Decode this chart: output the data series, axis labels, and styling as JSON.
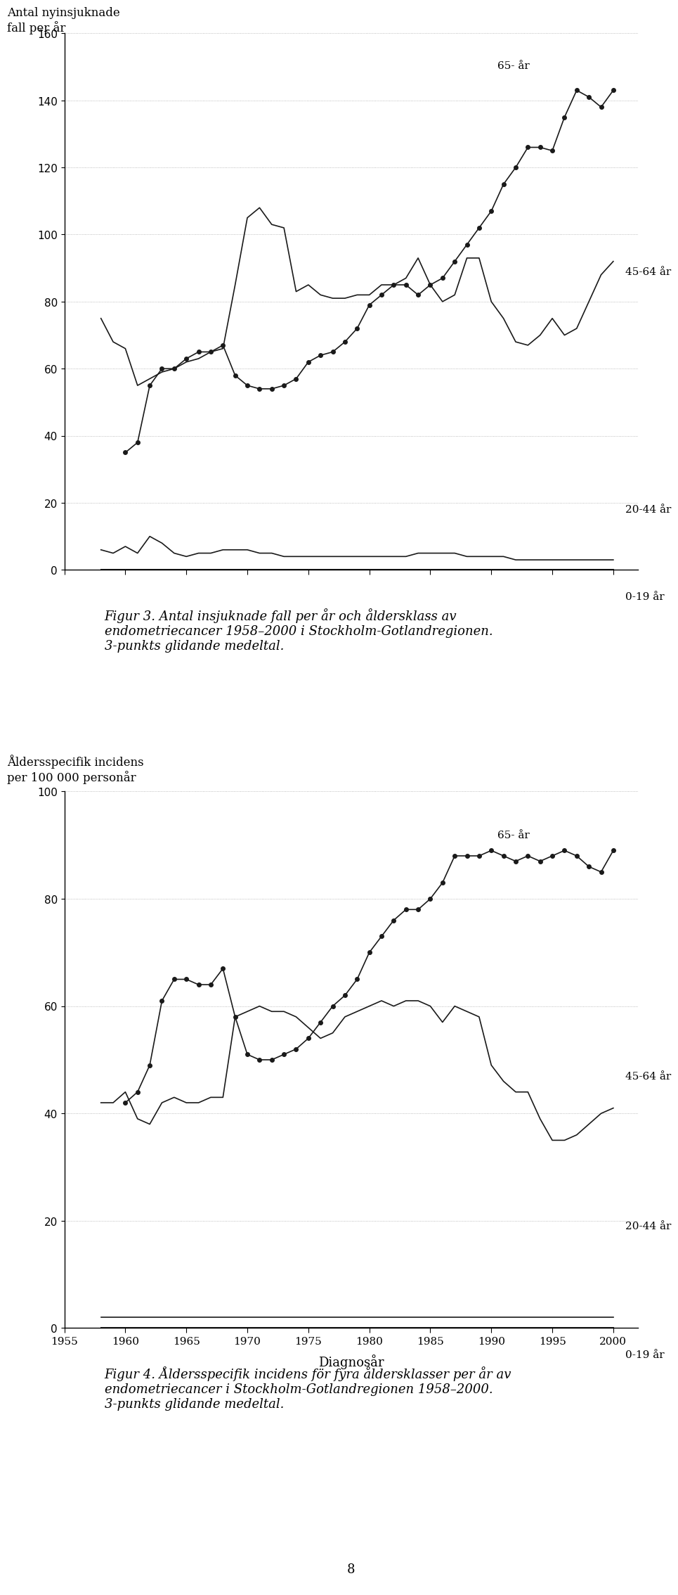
{
  "years": [
    1958,
    1959,
    1960,
    1961,
    1962,
    1963,
    1964,
    1965,
    1966,
    1967,
    1968,
    1969,
    1970,
    1971,
    1972,
    1973,
    1974,
    1975,
    1976,
    1977,
    1978,
    1979,
    1980,
    1981,
    1982,
    1983,
    1984,
    1985,
    1986,
    1987,
    1988,
    1989,
    1990,
    1991,
    1992,
    1993,
    1994,
    1995,
    1996,
    1997,
    1998,
    1999,
    2000
  ],
  "fig1_65plus": [
    null,
    null,
    35,
    38,
    55,
    60,
    60,
    63,
    65,
    65,
    67,
    58,
    55,
    54,
    54,
    55,
    57,
    62,
    64,
    65,
    68,
    72,
    79,
    82,
    85,
    85,
    82,
    85,
    87,
    92,
    97,
    102,
    107,
    115,
    120,
    126,
    126,
    125,
    135,
    143,
    141,
    138,
    143
  ],
  "fig1_45_64": [
    75,
    68,
    66,
    55,
    57,
    59,
    60,
    62,
    63,
    65,
    66,
    85,
    105,
    108,
    103,
    102,
    83,
    85,
    82,
    81,
    81,
    82,
    82,
    85,
    85,
    87,
    93,
    85,
    80,
    82,
    93,
    93,
    80,
    75,
    68,
    67,
    70,
    75,
    70,
    72,
    80,
    88,
    92
  ],
  "fig1_20_44": [
    6,
    5,
    7,
    5,
    10,
    8,
    5,
    4,
    5,
    5,
    6,
    6,
    6,
    5,
    5,
    4,
    4,
    4,
    4,
    4,
    4,
    4,
    4,
    4,
    4,
    4,
    5,
    5,
    5,
    5,
    4,
    4,
    4,
    4,
    3,
    3,
    3,
    3,
    3,
    3,
    3,
    3,
    3
  ],
  "fig1_0_19": [
    0,
    0,
    0,
    0,
    0,
    0,
    0,
    0,
    0,
    0,
    0,
    0,
    0,
    0,
    0,
    0,
    0,
    0,
    0,
    0,
    0,
    0,
    0,
    0,
    0,
    0,
    0,
    0,
    0,
    0,
    0,
    0,
    0,
    0,
    0,
    0,
    0,
    0,
    0,
    0,
    0,
    0,
    0
  ],
  "fig2_65plus": [
    null,
    null,
    42,
    44,
    49,
    61,
    65,
    65,
    64,
    64,
    67,
    58,
    51,
    50,
    50,
    51,
    52,
    54,
    57,
    60,
    62,
    65,
    70,
    73,
    76,
    78,
    78,
    80,
    83,
    88,
    88,
    88,
    89,
    88,
    87,
    88,
    87,
    88,
    89,
    88,
    86,
    85,
    89
  ],
  "fig2_45_64": [
    42,
    42,
    44,
    39,
    38,
    42,
    43,
    42,
    42,
    43,
    43,
    58,
    59,
    60,
    59,
    59,
    58,
    56,
    54,
    55,
    58,
    59,
    60,
    61,
    60,
    61,
    61,
    60,
    57,
    60,
    59,
    58,
    49,
    46,
    44,
    44,
    39,
    35,
    35,
    36,
    38,
    40,
    41
  ],
  "fig2_20_44": [
    2,
    2,
    2,
    2,
    2,
    2,
    2,
    2,
    2,
    2,
    2,
    2,
    2,
    2,
    2,
    2,
    2,
    2,
    2,
    2,
    2,
    2,
    2,
    2,
    2,
    2,
    2,
    2,
    2,
    2,
    2,
    2,
    2,
    2,
    2,
    2,
    2,
    2,
    2,
    2,
    2,
    2,
    2
  ],
  "fig2_0_19": [
    0,
    0,
    0,
    0,
    0,
    0,
    0,
    0,
    0,
    0,
    0,
    0,
    0,
    0,
    0,
    0,
    0,
    0,
    0,
    0,
    0,
    0,
    0,
    0,
    0,
    0,
    0,
    0,
    0,
    0,
    0,
    0,
    0,
    0,
    0,
    0,
    0,
    0,
    0,
    0,
    0,
    0,
    0
  ],
  "fig1_ylabel": "Antal nyinsjuknade\nfall per år",
  "fig2_ylabel": "Åldersspecifik incidens\nper 100 000 personår",
  "xlabel": "Diagnosår",
  "fig1_ylim": [
    0,
    160
  ],
  "fig1_yticks": [
    0,
    20,
    40,
    60,
    80,
    100,
    120,
    140,
    160
  ],
  "fig2_ylim": [
    0,
    100
  ],
  "fig2_yticks": [
    0,
    20,
    40,
    60,
    80,
    100
  ],
  "xticks": [
    1955,
    1960,
    1965,
    1970,
    1975,
    1980,
    1985,
    1990,
    1995,
    2000
  ],
  "xlim": [
    1955,
    2002
  ],
  "fig1_label_65": "65- år",
  "fig1_label_4564": "45-64 år",
  "fig1_label_2044": "20-44 år",
  "fig1_label_019": "0-19 år",
  "fig2_label_65": "65- år",
  "fig2_label_4564": "45-64 år",
  "fig2_label_2044": "20-44 år",
  "fig2_label_019": "0-19 år",
  "caption1": "Figur 3. Antal insjuknade fall per år och åldersklass av\nendometriecancer 1958–2000 i Stockholm-Gotlandregionen.\n3-punkts glidande medeltal.",
  "caption2": "Figur 4. Åldersspecifik incidens för fyra åldersklasser per år av\nendometriecancer i Stockholm-Gotlandregionen 1958–2000.\n3-punkts glidande medeltal.",
  "page_number": "8",
  "line_color": "#1a1a1a",
  "dot_color": "#1a1a1a",
  "grid_color": "#aaaaaa",
  "background_color": "#ffffff",
  "marker_size": 4
}
